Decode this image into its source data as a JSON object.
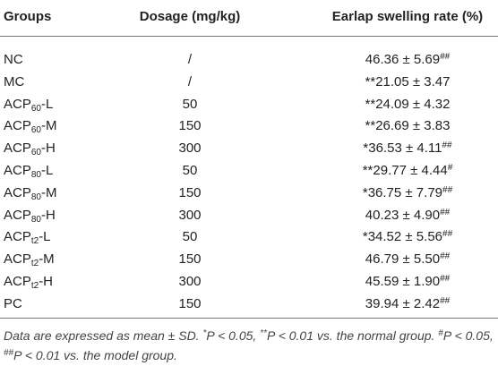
{
  "table": {
    "header": [
      "Groups",
      "Dosage (mg/kg)",
      "Earlap swelling rate (%)"
    ],
    "rows": [
      {
        "group": {
          "base": "NC"
        },
        "dosage": "/",
        "rate": {
          "text": "46.36 ± 5.69",
          "post": "##"
        }
      },
      {
        "group": {
          "base": "MC"
        },
        "dosage": "/",
        "rate": {
          "pre": "**",
          "text": "21.05 ± 3.47"
        }
      },
      {
        "group": {
          "base": "ACP",
          "sub": "60",
          "suffix": "-L"
        },
        "dosage": "50",
        "rate": {
          "pre": "**",
          "text": "24.09 ± 4.32"
        }
      },
      {
        "group": {
          "base": "ACP",
          "sub": "60",
          "suffix": "-M"
        },
        "dosage": "150",
        "rate": {
          "pre": "**",
          "text": "26.69 ± 3.83"
        }
      },
      {
        "group": {
          "base": "ACP",
          "sub": "60",
          "suffix": "-H"
        },
        "dosage": "300",
        "rate": {
          "pre": "*",
          "text": "36.53 ± 4.11",
          "post": "##"
        }
      },
      {
        "group": {
          "base": "ACP",
          "sub": "80",
          "suffix": "-L"
        },
        "dosage": "50",
        "rate": {
          "pre": "**",
          "text": "29.77 ± 4.44",
          "post": "#"
        }
      },
      {
        "group": {
          "base": "ACP",
          "sub": "80",
          "suffix": "-M"
        },
        "dosage": "150",
        "rate": {
          "pre": "*",
          "text": "36.75 ± 7.79",
          "post": "##"
        }
      },
      {
        "group": {
          "base": "ACP",
          "sub": "80",
          "suffix": "-H"
        },
        "dosage": "300",
        "rate": {
          "text": "40.23 ± 4.90",
          "post": "##"
        }
      },
      {
        "group": {
          "base": "ACP",
          "sub": "t2",
          "suffix": "-L"
        },
        "dosage": "50",
        "rate": {
          "pre": "*",
          "text": "34.52 ± 5.56",
          "post": "##"
        }
      },
      {
        "group": {
          "base": "ACP",
          "sub": "t2",
          "suffix": "-M"
        },
        "dosage": "150",
        "rate": {
          "text": "46.79 ± 5.50",
          "post": "##"
        }
      },
      {
        "group": {
          "base": "ACP",
          "sub": "t2",
          "suffix": "-H"
        },
        "dosage": "300",
        "rate": {
          "text": "45.59 ± 1.90",
          "post": "##"
        }
      },
      {
        "group": {
          "base": "PC"
        },
        "dosage": "150",
        "rate": {
          "text": "39.94 ± 2.42",
          "post": "##"
        }
      }
    ]
  },
  "footnote": [
    {
      "t": "Data are expressed as mean ± SD. "
    },
    {
      "t": "*",
      "sup": true
    },
    {
      "t": "P < 0.05, "
    },
    {
      "t": "**",
      "sup": true
    },
    {
      "t": "P < 0.01 vs. the normal group. "
    },
    {
      "t": "#",
      "sup": true
    },
    {
      "t": "P < 0.05, "
    },
    {
      "t": "##",
      "sup": true
    },
    {
      "t": "P < 0.01 vs. the model group."
    }
  ]
}
